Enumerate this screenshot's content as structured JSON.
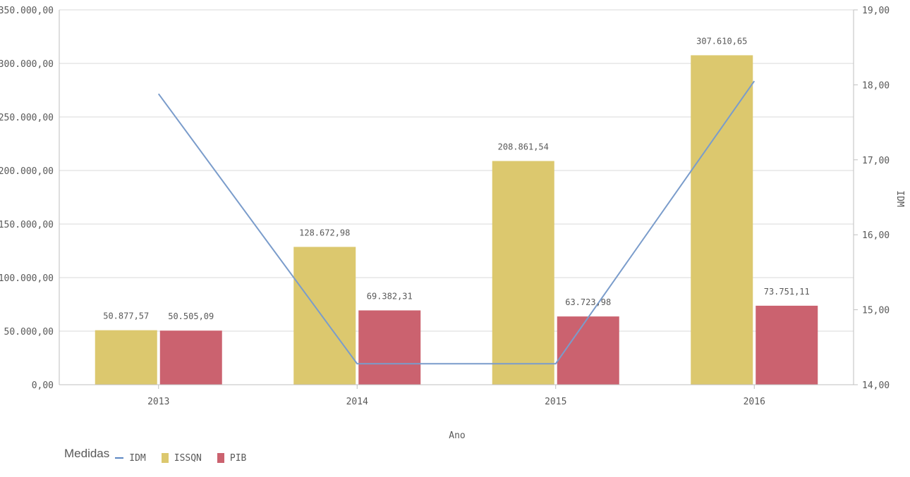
{
  "chart_data": {
    "type": "bar+line",
    "categories": [
      "2013",
      "2014",
      "2015",
      "2016"
    ],
    "xlabel": "Ano",
    "y2label": "IDM",
    "ylim": [
      0,
      350000
    ],
    "y2lim": [
      14,
      19
    ],
    "yticks": [
      "0,00",
      "50.000,00",
      "100.000,00",
      "150.000,00",
      "200.000,00",
      "250.000,00",
      "300.000,00",
      "350.000,00"
    ],
    "y2ticks": [
      "14,00",
      "15,00",
      "16,00",
      "17,00",
      "18,00",
      "19,00"
    ],
    "grid": true,
    "legend": "bottom-left",
    "series": [
      {
        "name": "ISSQN",
        "kind": "bar",
        "color": "#dcc86e",
        "values": [
          50877.57,
          128672.98,
          208861.54,
          307610.65
        ],
        "labels": [
          "50.877,57",
          "128.672,98",
          "208.861,54",
          "307.610,65"
        ]
      },
      {
        "name": "PIB",
        "kind": "bar",
        "color": "#cb626f",
        "values": [
          50505.09,
          69382.31,
          63723.98,
          73751.11
        ],
        "labels": [
          "50.505,09",
          "69.382,31",
          "63.723,98",
          "73.751,11"
        ]
      },
      {
        "name": "IDM",
        "kind": "line",
        "axis": "right",
        "color": "#7a9ccb",
        "values": [
          17.88,
          14.28,
          14.28,
          18.05
        ]
      }
    ]
  },
  "legend": {
    "title": "Medidas",
    "items": [
      {
        "label": "IDM",
        "color": "#5b86c2",
        "shape": "line"
      },
      {
        "label": "ISSQN",
        "color": "#dcc86e",
        "shape": "box"
      },
      {
        "label": "PIB",
        "color": "#cb626f",
        "shape": "box"
      }
    ]
  }
}
